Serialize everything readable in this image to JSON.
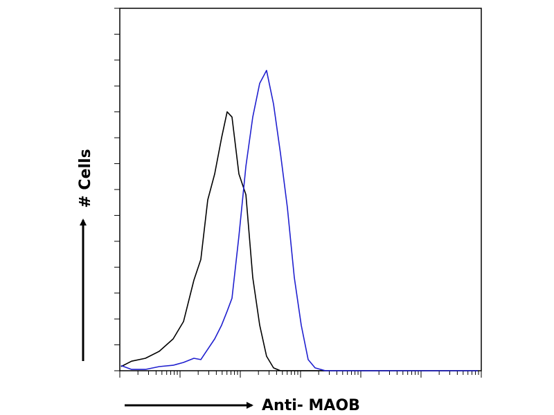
{
  "chart_data": {
    "type": "line",
    "xlabel": "Anti- MAOB",
    "ylabel": "# Cells",
    "x": [
      1.05,
      1.57,
      2.66,
      4.52,
      7.68,
      11.4,
      17,
      22.1,
      28.8,
      37.6,
      49,
      60.4,
      72.8,
      94.8,
      124,
      161,
      210,
      273,
      356,
      464,
      605,
      788,
      1026,
      1337,
      1742,
      2594,
      5741,
      28100,
      304000,
      877000
    ],
    "series": [
      {
        "color": "#000000",
        "values": [
          1.6,
          3.7,
          4.8,
          7.5,
          12.3,
          19,
          35,
          43,
          66,
          76,
          90,
          100,
          98,
          76,
          68,
          36,
          17.6,
          5.6,
          1.1,
          0,
          0,
          0,
          0,
          0,
          0,
          0,
          0,
          0,
          0,
          0
        ]
      },
      {
        "color": "#1f1fcf",
        "values": [
          2,
          0.5,
          0.5,
          1.6,
          2.1,
          3.2,
          4.8,
          4.3,
          8.3,
          12.3,
          17.6,
          23,
          28,
          52,
          79,
          98,
          111,
          116,
          103,
          84,
          63,
          36,
          17.6,
          4.3,
          1.1,
          0,
          0,
          0,
          0,
          0
        ]
      }
    ],
    "xlim": [
      1,
      1000000
    ],
    "xlog": true,
    "xticks": [
      1,
      2,
      3,
      4,
      5,
      6,
      7,
      8,
      9,
      10,
      20,
      30,
      40,
      50,
      60,
      70,
      80,
      90,
      100,
      200,
      300,
      400,
      500,
      600,
      700,
      800,
      900,
      1000,
      2000,
      3000,
      4000,
      5000,
      6000,
      7000,
      8000,
      9000,
      10000,
      20000,
      30000,
      40000,
      50000,
      60000,
      70000,
      80000,
      90000,
      100000,
      200000,
      300000,
      400000,
      500000,
      600000,
      700000,
      800000,
      900000,
      1000000
    ],
    "ylim": [
      0,
      140
    ],
    "yticks": [
      0,
      10,
      20,
      30,
      40,
      50,
      60,
      70,
      80,
      90,
      100,
      110,
      120,
      130,
      140
    ],
    "grid": false
  }
}
